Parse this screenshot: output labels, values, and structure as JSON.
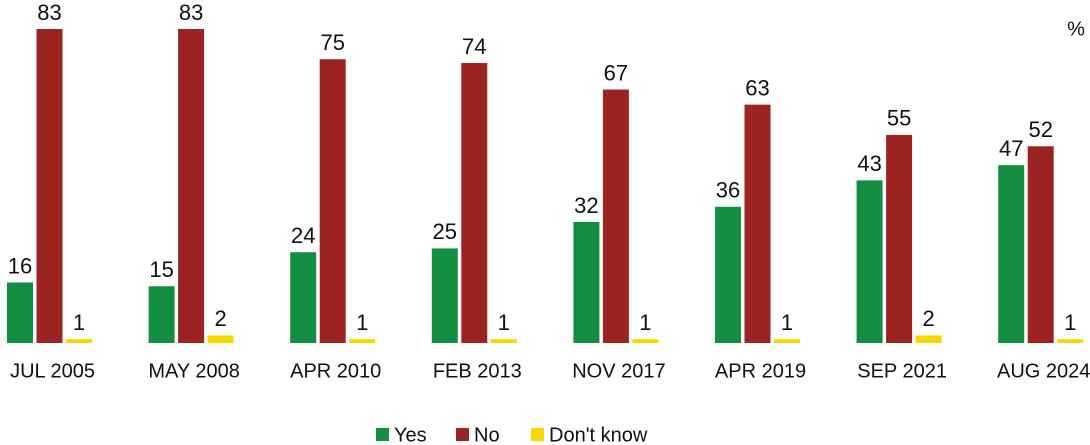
{
  "chart_data": {
    "type": "bar",
    "unit_label": "%",
    "categories": [
      "JUL 2005",
      "MAY 2008",
      "APR 2010",
      "FEB 2013",
      "NOV 2017",
      "APR 2019",
      "SEP 2021",
      "AUG 2024"
    ],
    "series": [
      {
        "name": "Yes",
        "color": "#138d3f",
        "values": [
          16,
          15,
          24,
          25,
          32,
          36,
          43,
          47
        ]
      },
      {
        "name": "No",
        "color": "#9c2420",
        "values": [
          83,
          83,
          75,
          74,
          67,
          63,
          55,
          52
        ]
      },
      {
        "name": "Don't know",
        "color": "#f6d800",
        "values": [
          1,
          2,
          1,
          1,
          1,
          1,
          2,
          1
        ]
      }
    ]
  }
}
